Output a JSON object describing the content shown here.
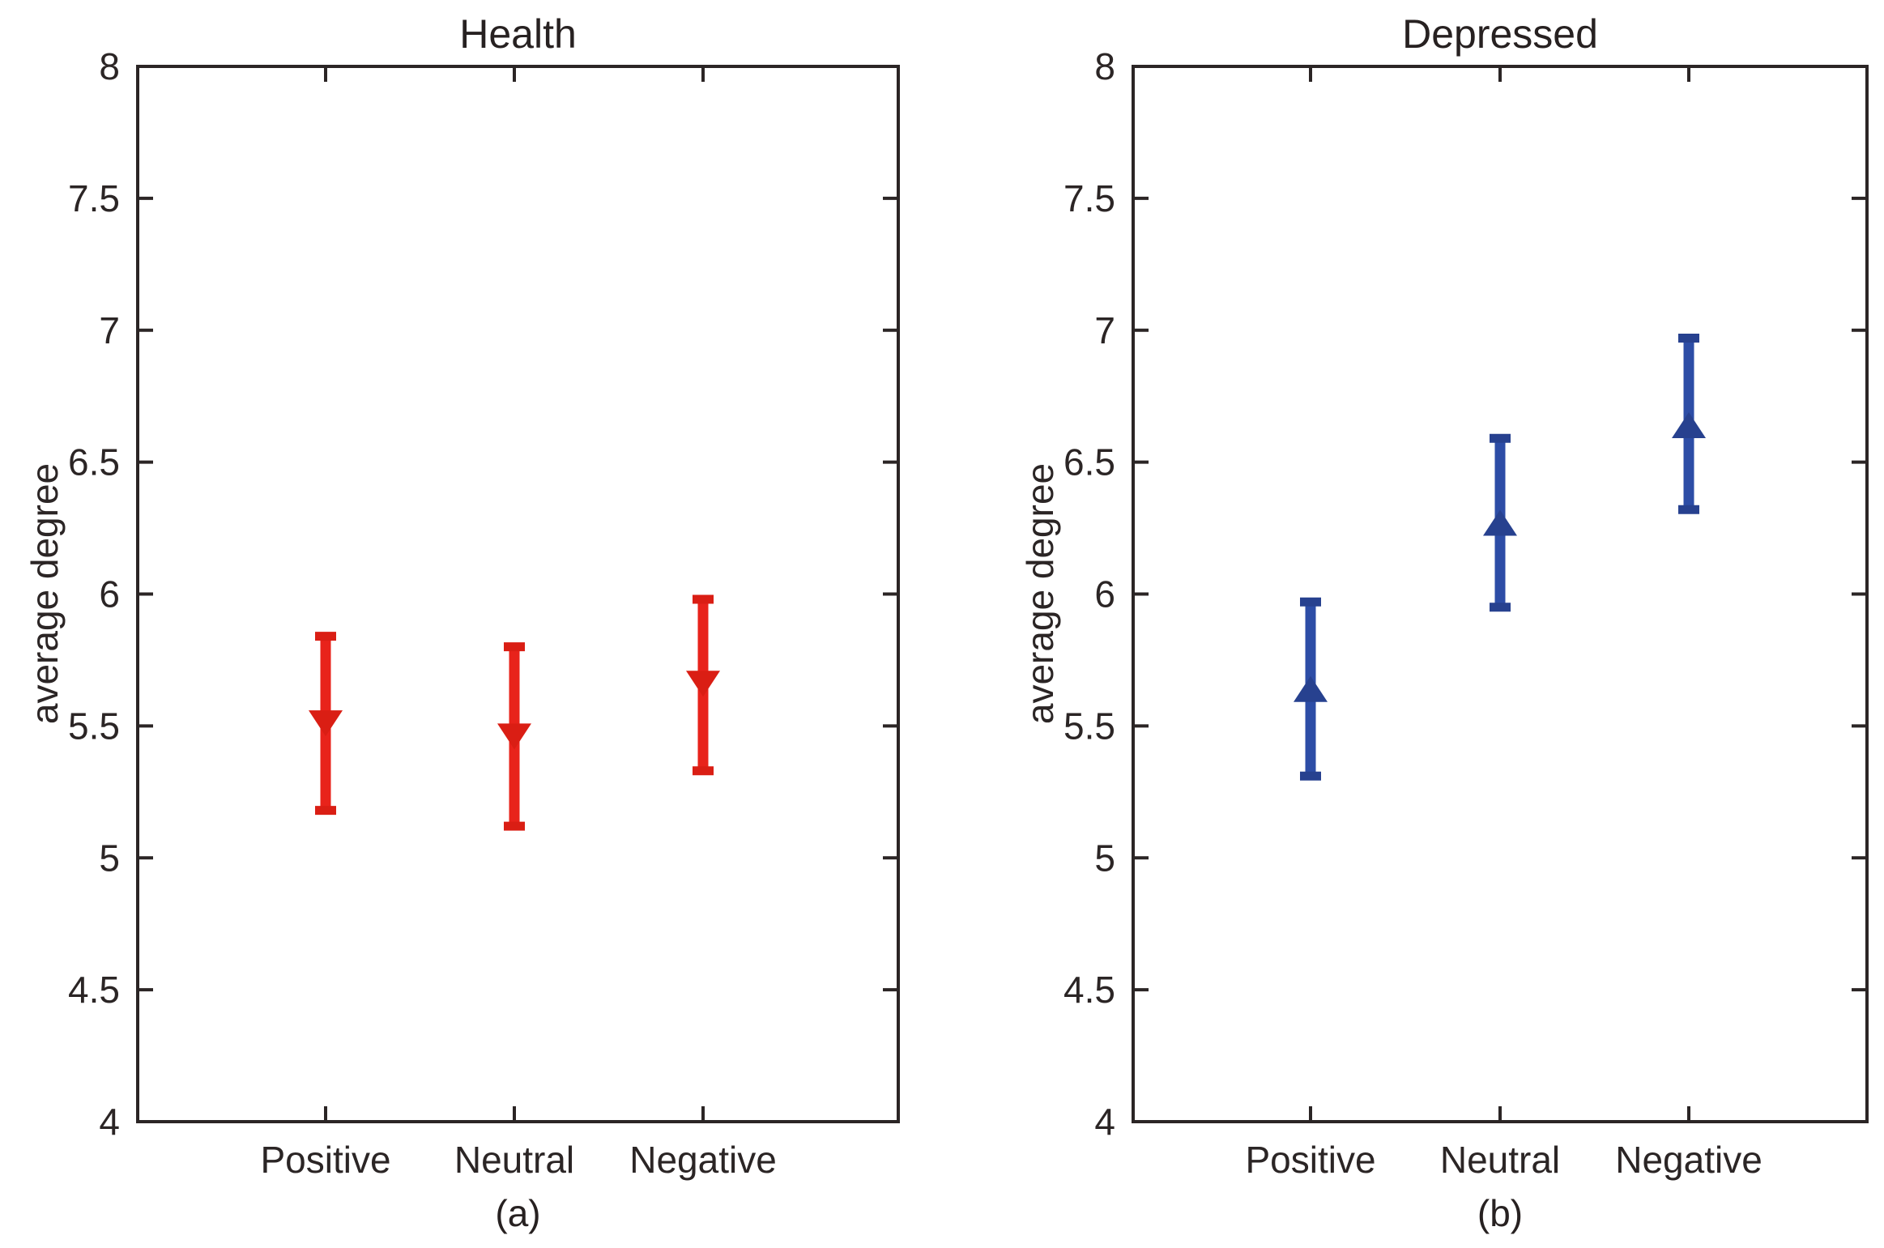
{
  "background": "#ffffff",
  "axis_color": "#2b2525",
  "chart_data": [
    {
      "id": "a",
      "type": "errorbar",
      "title": "Health",
      "ylabel": "average degree",
      "caption": "(a)",
      "categories": [
        "Positive",
        "Neutral",
        "Negative"
      ],
      "ylim": [
        4,
        8
      ],
      "yticks": [
        4,
        4.5,
        5,
        5.5,
        6,
        6.5,
        7,
        7.5,
        8
      ],
      "ytick_labels": [
        "4",
        "4.5",
        "5",
        "5.5",
        "6",
        "6.5",
        "7",
        "7.5",
        "8"
      ],
      "grid": false,
      "series": [
        {
          "name": "Health",
          "marker": "triangle-down",
          "line_color": "#e8231b",
          "marker_color": "#da1e14",
          "means": [
            5.51,
            5.46,
            5.66
          ],
          "ci_low": [
            5.18,
            5.12,
            5.33
          ],
          "ci_high": [
            5.84,
            5.8,
            5.98
          ]
        }
      ]
    },
    {
      "id": "b",
      "type": "errorbar",
      "title": "Depressed",
      "ylabel": "average degree",
      "caption": "(b)",
      "categories": [
        "Positive",
        "Neutral",
        "Negative"
      ],
      "ylim": [
        4,
        8
      ],
      "yticks": [
        4,
        4.5,
        5,
        5.5,
        6,
        6.5,
        7,
        7.5,
        8
      ],
      "ytick_labels": [
        "4",
        "4.5",
        "5",
        "5.5",
        "6",
        "6.5",
        "7",
        "7.5",
        "8"
      ],
      "grid": false,
      "series": [
        {
          "name": "Depressed",
          "marker": "triangle-up",
          "line_color": "#2d4da6",
          "marker_color": "#27418f",
          "means": [
            5.64,
            6.27,
            6.64
          ],
          "ci_low": [
            5.31,
            5.95,
            6.32
          ],
          "ci_high": [
            5.97,
            6.59,
            6.97
          ]
        }
      ]
    }
  ]
}
